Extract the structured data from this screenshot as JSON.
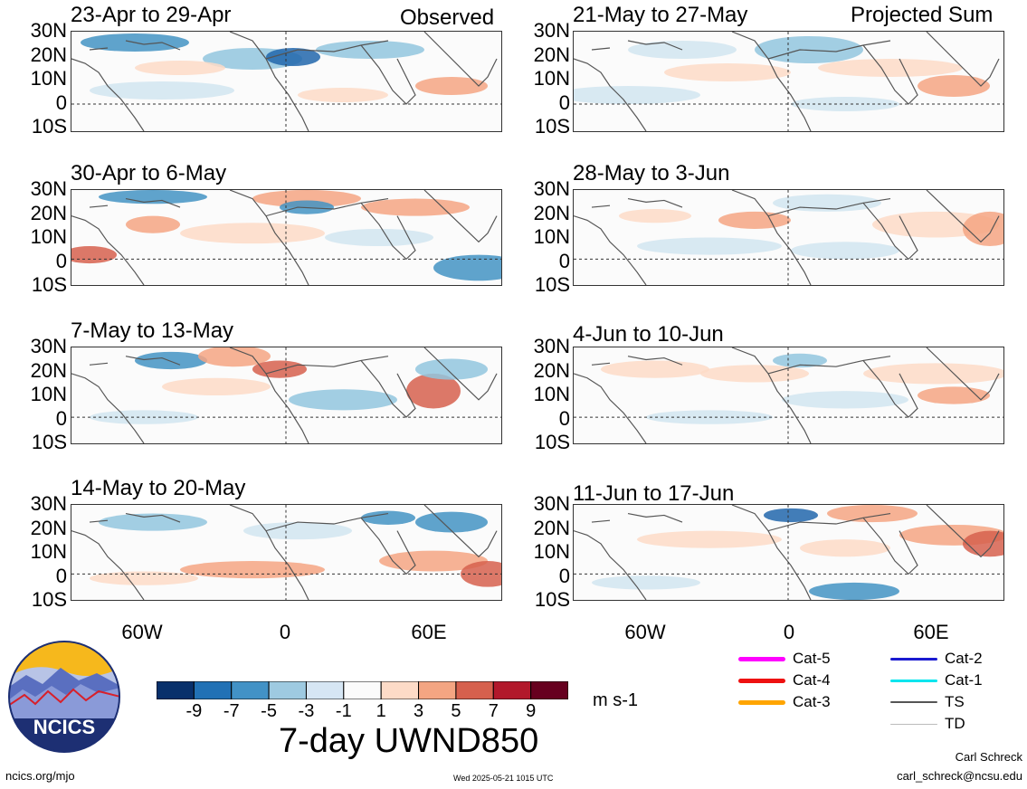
{
  "header": {
    "left_label": "Observed",
    "right_label": "Projected Sum"
  },
  "lat_labels": [
    "30N",
    "20N",
    "10N",
    "0",
    "10S"
  ],
  "lon_labels": [
    "60W",
    "0",
    "60E"
  ],
  "observed_panels": [
    {
      "title": "23-Apr to 29-Apr"
    },
    {
      "title": "30-Apr to 6-May"
    },
    {
      "title": "7-May to 13-May"
    },
    {
      "title": "14-May to 20-May"
    }
  ],
  "projected_panels": [
    {
      "title": "21-May to 27-May"
    },
    {
      "title": "28-May to 3-Jun"
    },
    {
      "title": "4-Jun to 10-Jun"
    },
    {
      "title": "11-Jun to 17-Jun"
    }
  ],
  "colorbar": {
    "tick_labels": [
      "-9",
      "-7",
      "-5",
      "-3",
      "-1",
      "1",
      "3",
      "5",
      "7",
      "9"
    ],
    "colors": [
      "#08306b",
      "#2171b5",
      "#4292c6",
      "#9ecae1",
      "#d6e6f4",
      "#fbfbfb",
      "#fddbc7",
      "#f4a582",
      "#d6604d",
      "#b2182b",
      "#67001f"
    ],
    "units": "m s-1"
  },
  "title": "7-day UWND850",
  "legend": [
    {
      "label": "Cat-5",
      "color": "#ff00ff"
    },
    {
      "label": "Cat-4",
      "color": "#ee1111"
    },
    {
      "label": "Cat-3",
      "color": "#ffa500"
    },
    {
      "label": "Cat-2",
      "color": "#1a1ad0"
    },
    {
      "label": "Cat-1",
      "color": "#00e5ee"
    },
    {
      "label": "TS",
      "color": "#555555"
    },
    {
      "label": "TD",
      "color": "#bbbbbb"
    }
  ],
  "logo": {
    "text": "NCICS"
  },
  "footer": {
    "url": "ncics.org/mjo",
    "timestamp": "Wed 2025-05-21 1015 UTC",
    "author": "Carl Schreck",
    "email": "carl_schreck@ncsu.edu"
  }
}
